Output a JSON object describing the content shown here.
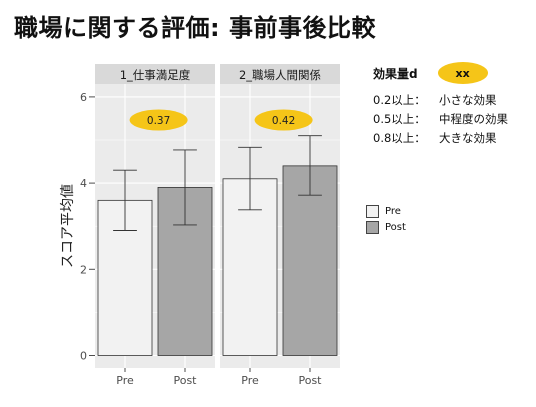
{
  "page": {
    "title": "職場に関する評価: 事前事後比較"
  },
  "effect": {
    "title": "効果量d",
    "pill": "xx",
    "rows": [
      {
        "level": "0.2以上：",
        "desc": "小さな効果"
      },
      {
        "level": "0.5以上：",
        "desc": "中程度の効果"
      },
      {
        "level": "0.8以上：",
        "desc": "大きな効果"
      }
    ]
  },
  "legend": [
    {
      "label": "Pre",
      "color": "#f2f2f2"
    },
    {
      "label": "Post",
      "color": "#a6a6a6"
    }
  ],
  "chart_data": {
    "type": "bar",
    "ylabel": "スコア平均値",
    "ylim": [
      0,
      6.3
    ],
    "yticks": [
      "0",
      "2",
      "4",
      "6"
    ],
    "grid": true,
    "categories": [
      "Pre",
      "Post"
    ],
    "legend_position": "right",
    "facets": [
      {
        "title": "1_仕事満足度",
        "effect_size": "0.37",
        "values": [
          3.6,
          3.9
        ],
        "error_low": [
          2.9,
          3.03
        ],
        "error_high": [
          4.3,
          4.77
        ]
      },
      {
        "title": "2_職場人間関係",
        "effect_size": "0.42",
        "values": [
          4.1,
          4.4
        ],
        "error_low": [
          3.38,
          3.72
        ],
        "error_high": [
          4.83,
          5.1
        ]
      }
    ],
    "colors": {
      "Pre": "#f2f2f2",
      "Post": "#a6a6a6",
      "panel": "#ebebeb",
      "strip": "#d9d9d9",
      "effect_pill": "#f5c518"
    }
  }
}
